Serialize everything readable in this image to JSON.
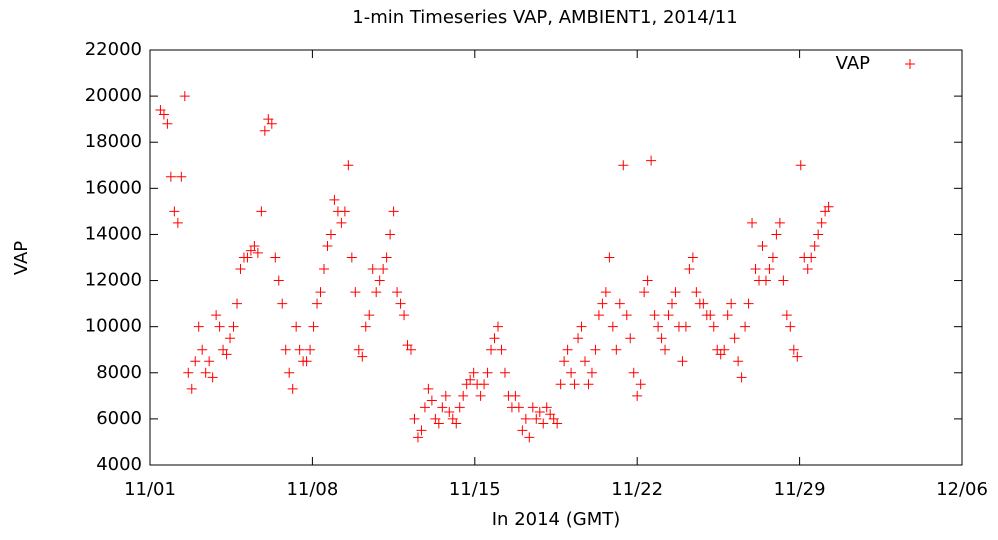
{
  "chart_data": {
    "type": "scatter",
    "title": "1-min Timeseries VAP, AMBIENT1, 2014/11",
    "xlabel": "In 2014 (GMT)",
    "ylabel": "VAP",
    "xlim": [
      1,
      36
    ],
    "xticks": [
      {
        "value": 1,
        "label": "11/01"
      },
      {
        "value": 8,
        "label": "11/08"
      },
      {
        "value": 15,
        "label": "11/15"
      },
      {
        "value": 22,
        "label": "11/22"
      },
      {
        "value": 29,
        "label": "11/29"
      },
      {
        "value": 36,
        "label": "12/06"
      }
    ],
    "ylim": [
      4000,
      22000
    ],
    "yticks": [
      4000,
      6000,
      8000,
      10000,
      12000,
      14000,
      16000,
      18000,
      20000,
      22000
    ],
    "legend": "top-right",
    "x": [
      1.45,
      1.6,
      1.75,
      1.9,
      2.05,
      2.2,
      2.35,
      2.5,
      2.65,
      2.8,
      2.95,
      3.1,
      3.25,
      3.4,
      3.55,
      3.7,
      3.85,
      4,
      4.15,
      4.3,
      4.45,
      4.6,
      4.75,
      4.9,
      5.05,
      5.2,
      5.35,
      5.5,
      5.65,
      5.8,
      5.95,
      6.1,
      6.25,
      6.4,
      6.55,
      6.7,
      6.85,
      7,
      7.15,
      7.3,
      7.45,
      7.6,
      7.75,
      7.9,
      8.05,
      8.2,
      8.35,
      8.5,
      8.65,
      8.8,
      8.95,
      9.1,
      9.25,
      9.4,
      9.55,
      9.7,
      9.85,
      10,
      10.15,
      10.3,
      10.45,
      10.6,
      10.75,
      10.9,
      11.05,
      11.2,
      11.35,
      11.5,
      11.65,
      11.8,
      11.95,
      12.1,
      12.25,
      12.4,
      12.55,
      12.7,
      12.85,
      13,
      13.15,
      13.3,
      13.45,
      13.6,
      13.75,
      13.9,
      14.05,
      14.2,
      14.35,
      14.5,
      14.65,
      14.8,
      14.95,
      15.1,
      15.25,
      15.4,
      15.55,
      15.7,
      15.85,
      16,
      16.15,
      16.3,
      16.45,
      16.6,
      16.75,
      16.9,
      17.05,
      17.2,
      17.35,
      17.5,
      17.65,
      17.8,
      17.95,
      18.1,
      18.25,
      18.4,
      18.55,
      18.7,
      18.85,
      19,
      19.15,
      19.3,
      19.45,
      19.6,
      19.75,
      19.9,
      20.05,
      20.2,
      20.35,
      20.5,
      20.65,
      20.8,
      20.95,
      21.1,
      21.25,
      21.4,
      21.55,
      21.7,
      21.85,
      22,
      22.15,
      22.3,
      22.45,
      22.6,
      22.75,
      22.9,
      23.05,
      23.2,
      23.35,
      23.5,
      23.65,
      23.8,
      23.95,
      24.1,
      24.25,
      24.4,
      24.55,
      24.7,
      24.85,
      25,
      25.15,
      25.3,
      25.45,
      25.6,
      25.75,
      25.9,
      26.05,
      26.2,
      26.35,
      26.5,
      26.65,
      26.8,
      26.95,
      27.1,
      27.25,
      27.4,
      27.55,
      27.7,
      27.85,
      28,
      28.15,
      28.3,
      28.45,
      28.6,
      28.75,
      28.9,
      29.05,
      29.2,
      29.35,
      29.5,
      29.65,
      29.8,
      29.95,
      30.1,
      30.25
    ],
    "series": [
      {
        "name": "VAP",
        "color": "#ff0000",
        "values": [
          19400,
          19200,
          18800,
          16500,
          15000,
          14500,
          16500,
          20000,
          8000,
          7300,
          8500,
          10000,
          9000,
          8000,
          8500,
          7800,
          10500,
          10000,
          9000,
          8800,
          9500,
          10000,
          11000,
          12500,
          13000,
          13000,
          13300,
          13500,
          13200,
          15000,
          18500,
          19000,
          18800,
          13000,
          12000,
          11000,
          9000,
          8000,
          7300,
          10000,
          9000,
          8500,
          8500,
          9000,
          10000,
          11000,
          11500,
          12500,
          13500,
          14000,
          15500,
          15000,
          14500,
          15000,
          17000,
          13000,
          11500,
          9000,
          8700,
          10000,
          10500,
          12500,
          11500,
          12000,
          12500,
          13000,
          14000,
          15000,
          11500,
          11000,
          10500,
          9200,
          9000,
          6000,
          5200,
          5500,
          6500,
          7300,
          6800,
          6000,
          5800,
          6500,
          7000,
          6300,
          6000,
          5800,
          6500,
          7000,
          7500,
          7700,
          8000,
          7500,
          7000,
          7500,
          8000,
          9000,
          9500,
          10000,
          9000,
          8000,
          7000,
          6500,
          7000,
          6500,
          5500,
          6000,
          5200,
          6500,
          6000,
          6300,
          5800,
          6500,
          6200,
          6000,
          5800,
          7500,
          8500,
          9000,
          8000,
          7500,
          9500,
          10000,
          8500,
          7500,
          8000,
          9000,
          10500,
          11000,
          11500,
          13000,
          10000,
          9000,
          11000,
          17000,
          10500,
          9500,
          8000,
          7000,
          7500,
          11500,
          12000,
          17200,
          10500,
          10000,
          9500,
          9000,
          10500,
          11000,
          11500,
          10000,
          8500,
          10000,
          12500,
          13000,
          11500,
          11000,
          11000,
          10500,
          10500,
          10000,
          9000,
          8800,
          9000,
          10500,
          11000,
          9500,
          8500,
          7800,
          10000,
          11000,
          14500,
          12500,
          12000,
          13500,
          12000,
          12500,
          13000,
          14000,
          14500,
          12000,
          10500,
          10000,
          9000,
          8700,
          17000,
          13000,
          12500,
          13000,
          13500,
          14000,
          14500,
          15000,
          15200
        ]
      }
    ]
  }
}
